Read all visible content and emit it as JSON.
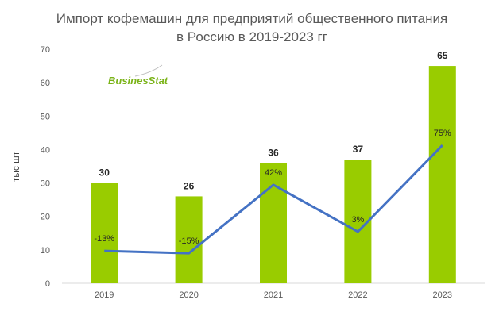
{
  "chart_data": {
    "type": "bar",
    "title_line1": "Импорт кофемашин для предприятий общественного питания",
    "title_line2": "в Россию в 2019-2023 гг",
    "categories": [
      "2019",
      "2020",
      "2021",
      "2022",
      "2023"
    ],
    "values": [
      30,
      26,
      36,
      37,
      65
    ],
    "value_labels": [
      "30",
      "26",
      "36",
      "37",
      "65"
    ],
    "ylabel": "тыс шт",
    "ylim": [
      0,
      70
    ],
    "yticks": [
      0,
      10,
      20,
      30,
      40,
      50,
      60,
      70
    ],
    "ytick_labels": [
      "0",
      "10",
      "20",
      "30",
      "40",
      "50",
      "60",
      "70"
    ],
    "line_series": {
      "name": "growth",
      "values": [
        -13,
        -15,
        42,
        3,
        75
      ],
      "labels": [
        "-13%",
        "-15%",
        "42%",
        "3%",
        "75%"
      ]
    },
    "bar_color": "#99cc00",
    "line_color": "#4472c4",
    "grid": false,
    "logo": "BusinesStat"
  }
}
